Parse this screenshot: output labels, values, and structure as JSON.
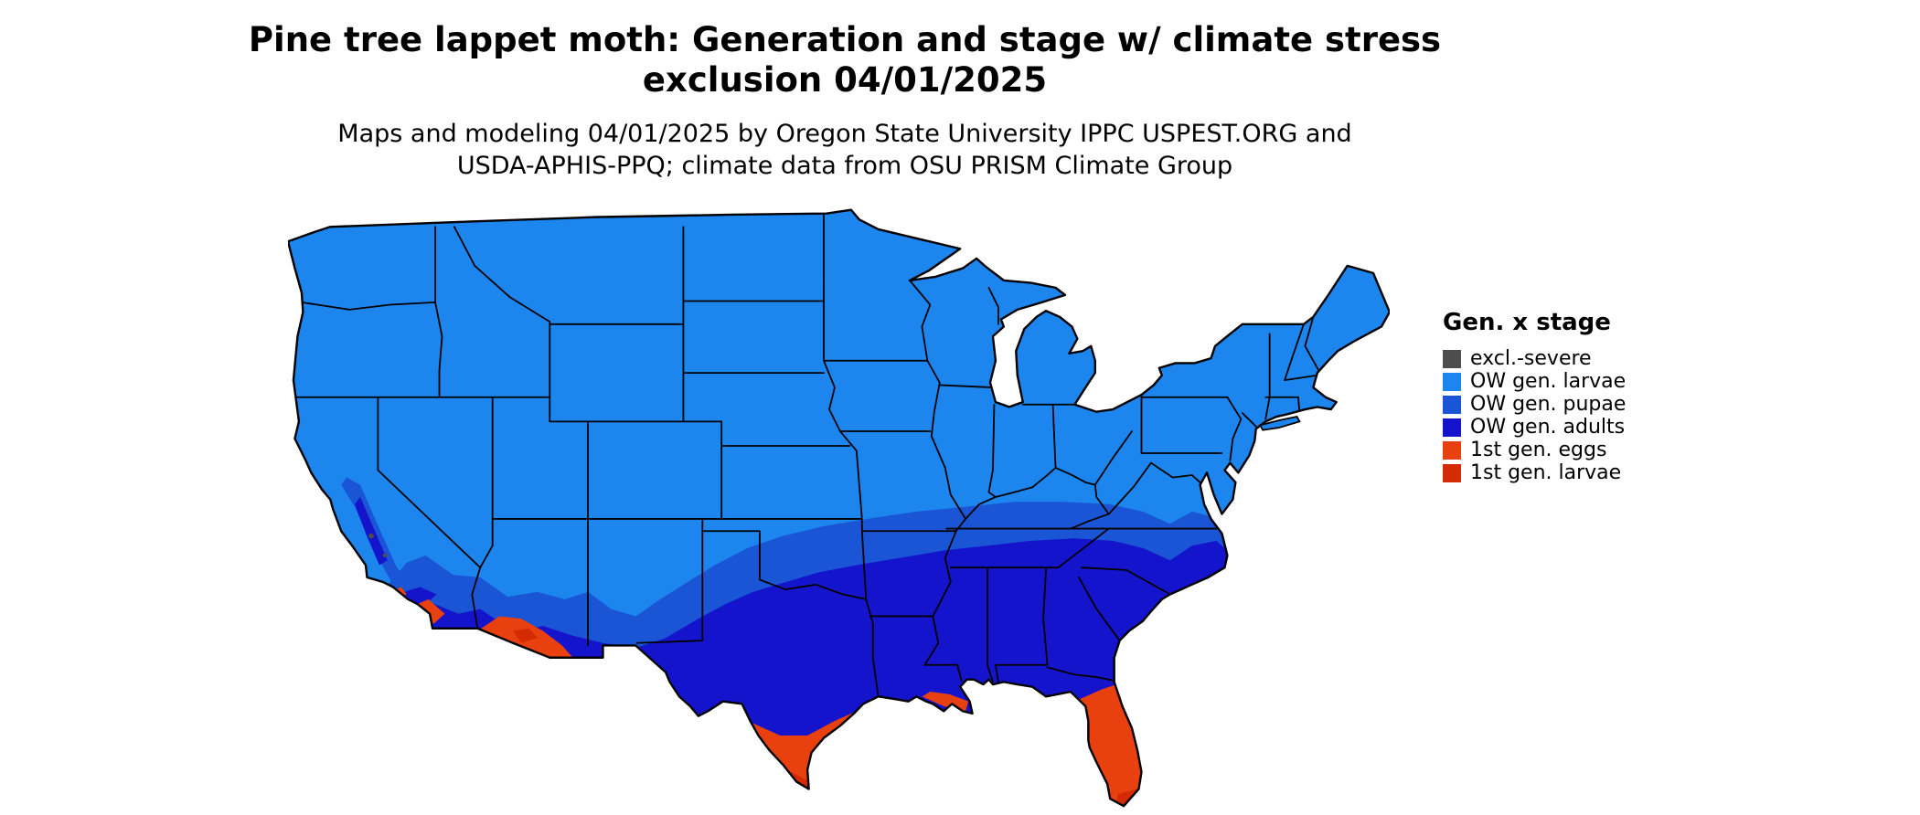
{
  "header": {
    "title_line1": "Pine tree lappet moth: Generation and stage w/ climate stress",
    "title_line2": "exclusion 04/01/2025",
    "subtitle_line1": "Maps and modeling 04/01/2025 by Oregon State University IPPC USPEST.ORG and",
    "subtitle_line2": "USDA-APHIS-PPQ; climate data from OSU PRISM Climate Group"
  },
  "legend": {
    "title": "Gen. x stage",
    "items": [
      {
        "label": "excl.-severe",
        "color": "#4D4D4D",
        "key": "excl"
      },
      {
        "label": "OW gen. larvae",
        "color": "#1C86EE",
        "key": "larvae"
      },
      {
        "label": "OW gen. pupae",
        "color": "#1A55D6",
        "key": "pupae"
      },
      {
        "label": "OW gen. adults",
        "color": "#1414CD",
        "key": "adults"
      },
      {
        "label": "1st gen. eggs",
        "color": "#E8400E",
        "key": "eggs"
      },
      {
        "label": "1st gen. larvae",
        "color": "#D52B05",
        "key": "larvae1"
      }
    ]
  },
  "map": {
    "region": "Continental United States",
    "date": "04/01/2025",
    "default_stage": "OW gen. larvae",
    "stage_extents": {
      "OW gen. larvae": "Most of the northern and central US",
      "OW gen. pupae": "Band across the southern plains and mid-South; Sierra Nevada",
      "OW gen. adults": "Southern California, southern Arizona and New Mexico, central and east Texas, Gulf states, Georgia, Carolinas coastal plain",
      "1st gen. eggs": "South Texas, Florida peninsula, southwest Arizona, southern California valleys, Louisiana coast",
      "1st gen. larvae": "Southernmost Texas, south Florida and the Keys"
    }
  }
}
